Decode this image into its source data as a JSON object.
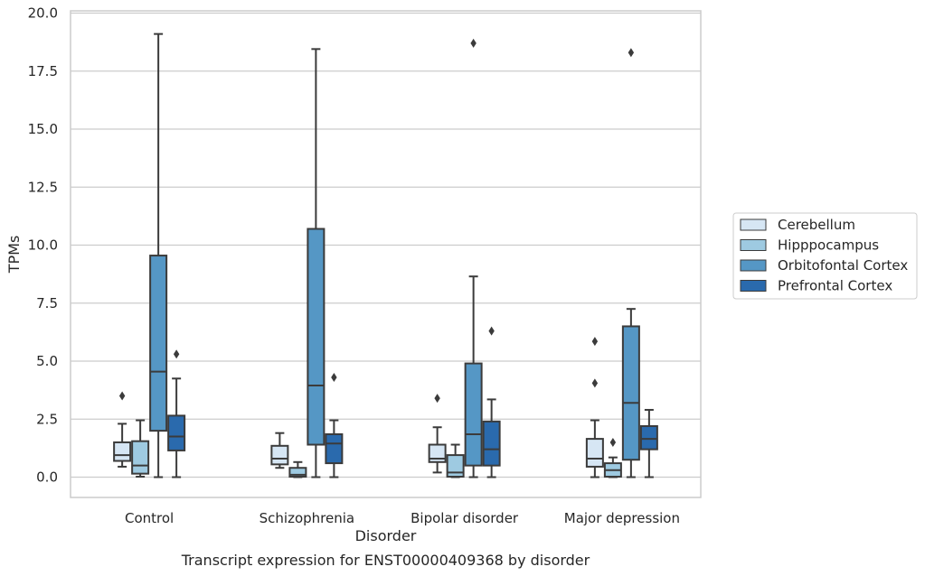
{
  "chart_data": {
    "type": "box",
    "title": "",
    "caption": "Transcript expression for ENST00000409368 by disorder",
    "xlabel": "Disorder",
    "ylabel": "TPMs",
    "ylim": [
      -0.9,
      20.15
    ],
    "yticks": [
      "0.0",
      "2.5",
      "5.0",
      "7.5",
      "10.0",
      "12.5",
      "15.0",
      "17.5",
      "20.0"
    ],
    "ytick_values": [
      0,
      2.5,
      5,
      7.5,
      10,
      12.5,
      15,
      17.5,
      20
    ],
    "grid": true,
    "legend_position": "right",
    "categories": [
      "Control",
      "Schizophrenia",
      "Bipolar disorder",
      "Major depression"
    ],
    "series": [
      {
        "name": "Cerebellum",
        "color": "#d6e6f4",
        "boxes": [
          {
            "whisker_low": 0.45,
            "q1": 0.7,
            "median": 0.95,
            "q3": 1.5,
            "whisker_high": 2.3,
            "outliers": [
              3.5
            ]
          },
          {
            "whisker_low": 0.4,
            "q1": 0.55,
            "median": 0.8,
            "q3": 1.35,
            "whisker_high": 1.9,
            "outliers": []
          },
          {
            "whisker_low": 0.2,
            "q1": 0.65,
            "median": 0.8,
            "q3": 1.4,
            "whisker_high": 2.15,
            "outliers": [
              3.4
            ]
          },
          {
            "whisker_low": 0.0,
            "q1": 0.45,
            "median": 0.8,
            "q3": 1.65,
            "whisker_high": 2.45,
            "outliers": [
              4.05,
              5.85
            ]
          }
        ]
      },
      {
        "name": "Hipppocampus",
        "color": "#9ecae1",
        "boxes": [
          {
            "whisker_low": 0.02,
            "q1": 0.15,
            "median": 0.5,
            "q3": 1.55,
            "whisker_high": 2.45,
            "outliers": []
          },
          {
            "whisker_low": 0.0,
            "q1": 0.02,
            "median": 0.1,
            "q3": 0.4,
            "whisker_high": 0.65,
            "outliers": []
          },
          {
            "whisker_low": 0.0,
            "q1": 0.02,
            "median": 0.2,
            "q3": 0.95,
            "whisker_high": 1.4,
            "outliers": []
          },
          {
            "whisker_low": 0.0,
            "q1": 0.02,
            "median": 0.3,
            "q3": 0.6,
            "whisker_high": 0.85,
            "outliers": [
              1.5
            ]
          }
        ]
      },
      {
        "name": "Orbitofontal Cortex",
        "color": "#5597c5",
        "boxes": [
          {
            "whisker_low": 0.0,
            "q1": 2.0,
            "median": 4.55,
            "q3": 9.55,
            "whisker_high": 19.1,
            "outliers": []
          },
          {
            "whisker_low": 0.0,
            "q1": 1.4,
            "median": 3.95,
            "q3": 10.7,
            "whisker_high": 18.45,
            "outliers": []
          },
          {
            "whisker_low": 0.0,
            "q1": 0.5,
            "median": 1.85,
            "q3": 4.9,
            "whisker_high": 8.65,
            "outliers": [
              18.7
            ]
          },
          {
            "whisker_low": 0.0,
            "q1": 0.75,
            "median": 3.2,
            "q3": 6.5,
            "whisker_high": 7.25,
            "outliers": [
              18.3
            ]
          }
        ]
      },
      {
        "name": "Prefrontal Cortex",
        "color": "#2a6aad",
        "boxes": [
          {
            "whisker_low": 0.0,
            "q1": 1.15,
            "median": 1.75,
            "q3": 2.65,
            "whisker_high": 4.25,
            "outliers": [
              5.3
            ]
          },
          {
            "whisker_low": 0.0,
            "q1": 0.6,
            "median": 1.45,
            "q3": 1.85,
            "whisker_high": 2.45,
            "outliers": [
              4.3
            ]
          },
          {
            "whisker_low": 0.0,
            "q1": 0.5,
            "median": 1.2,
            "q3": 2.4,
            "whisker_high": 3.35,
            "outliers": [
              6.3
            ]
          },
          {
            "whisker_low": 0.0,
            "q1": 1.2,
            "median": 1.65,
            "q3": 2.2,
            "whisker_high": 2.9,
            "outliers": []
          }
        ]
      }
    ]
  }
}
